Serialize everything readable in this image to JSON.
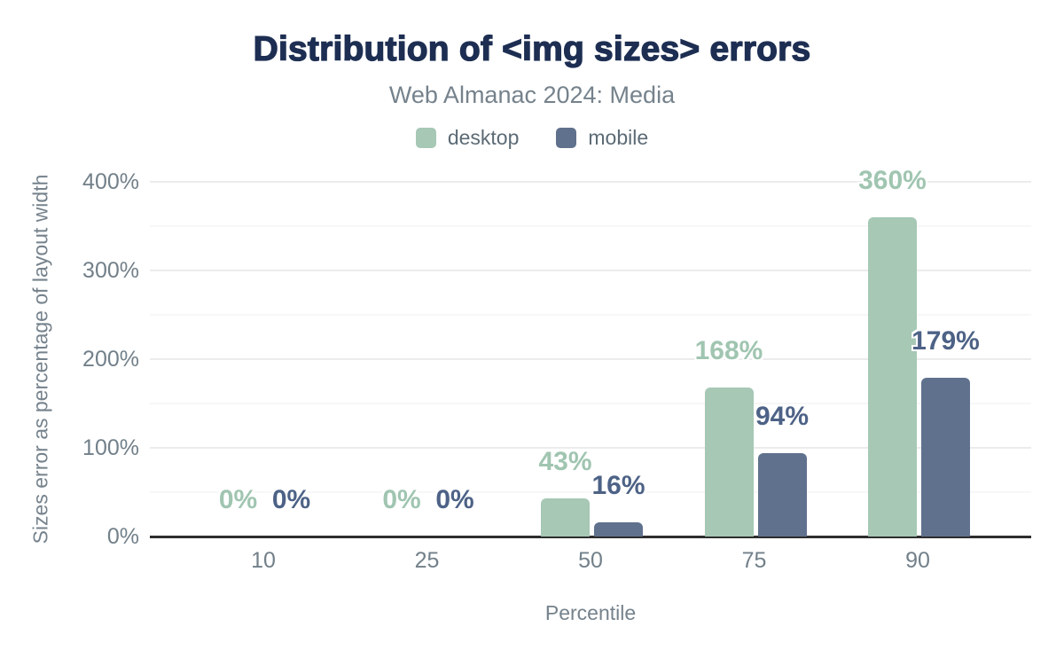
{
  "chart_data": {
    "type": "bar",
    "title": "Distribution of <img sizes> errors",
    "subtitle": "Web Almanac 2024: Media",
    "xlabel": "Percentile",
    "ylabel": "Sizes error as percentage of layout width",
    "categories": [
      "10",
      "25",
      "50",
      "75",
      "90"
    ],
    "series": [
      {
        "name": "desktop",
        "color": "#a6c8b5",
        "label_color": "#a0c5b1",
        "values": [
          0,
          0,
          43,
          168,
          360
        ],
        "data_labels": [
          "0%",
          "0%",
          "43%",
          "168%",
          "360%"
        ]
      },
      {
        "name": "mobile",
        "color": "#5f718d",
        "label_color": "#4d6286",
        "values": [
          0,
          0,
          16,
          94,
          179
        ],
        "data_labels": [
          "0%",
          "0%",
          "16%",
          "94%",
          "179%"
        ]
      }
    ],
    "y_ticks": [
      "0%",
      "100%",
      "200%",
      "300%",
      "400%"
    ],
    "ylim": [
      0,
      400
    ],
    "grid": {
      "major_step": 100,
      "minor_step": 50,
      "legend_position": "top"
    }
  },
  "colors": {
    "title": "#1d2e52",
    "subtitle": "#75828c",
    "axis_text": "#72808a",
    "axis_line": "#2e2e2e"
  }
}
